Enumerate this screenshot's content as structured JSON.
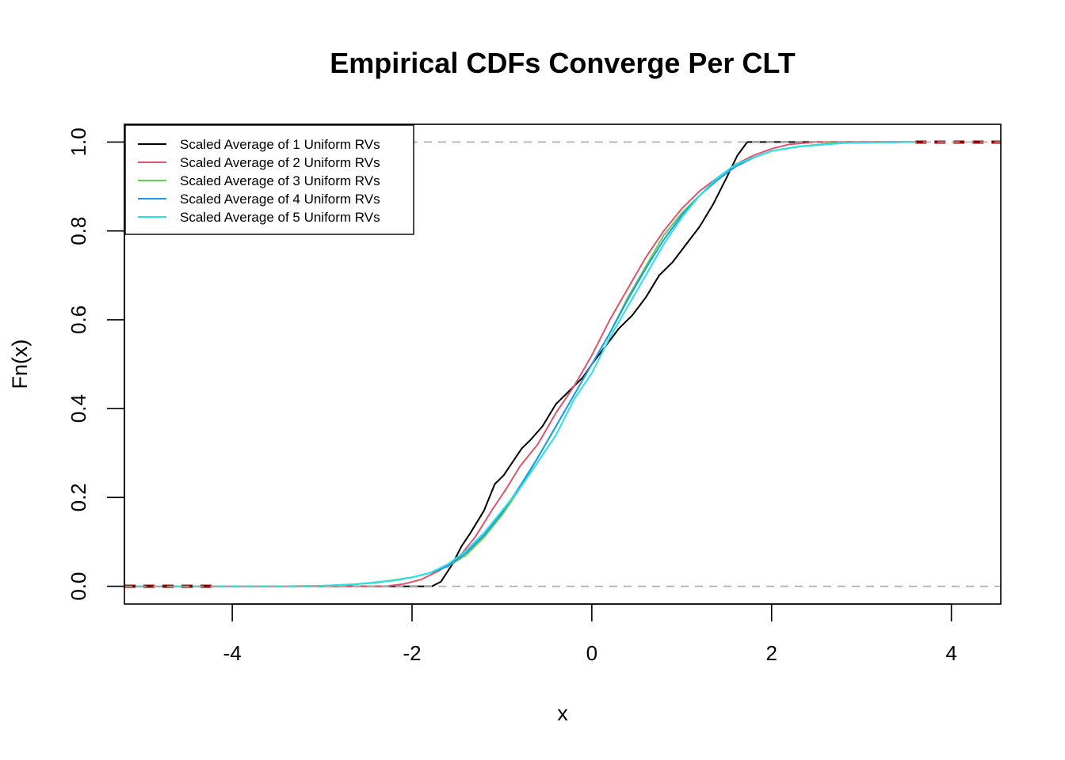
{
  "chart_data": {
    "type": "line",
    "title": "Empirical CDFs Converge Per CLT",
    "xlabel": "x",
    "ylabel": "Fn(x)",
    "xlim": [
      -5.2,
      4.55
    ],
    "ylim": [
      -0.04,
      1.04
    ],
    "x_ticks": [
      -4,
      -2,
      0,
      2,
      4
    ],
    "y_ticks": [
      0.0,
      0.2,
      0.4,
      0.6,
      0.8,
      1.0
    ],
    "x_tick_labels": [
      "-4",
      "-2",
      "0",
      "2",
      "4"
    ],
    "y_tick_labels": [
      "0.0",
      "0.2",
      "0.4",
      "0.6",
      "0.8",
      "1.0"
    ],
    "reference_lines_y": [
      0,
      1
    ],
    "grid": false,
    "legend_position": "top-left",
    "series": [
      {
        "name": "Scaled Average of 1 Uniform RVs",
        "color": "#000000",
        "points": [
          [
            -5.2,
            0
          ],
          [
            -1.78,
            0
          ],
          [
            -1.68,
            0.01
          ],
          [
            -1.55,
            0.05
          ],
          [
            -1.45,
            0.09
          ],
          [
            -1.35,
            0.12
          ],
          [
            -1.2,
            0.17
          ],
          [
            -1.08,
            0.23
          ],
          [
            -0.98,
            0.25
          ],
          [
            -0.88,
            0.28
          ],
          [
            -0.78,
            0.31
          ],
          [
            -0.68,
            0.33
          ],
          [
            -0.55,
            0.36
          ],
          [
            -0.4,
            0.41
          ],
          [
            -0.25,
            0.44
          ],
          [
            -0.1,
            0.47
          ],
          [
            0,
            0.5
          ],
          [
            0.15,
            0.54
          ],
          [
            0.3,
            0.58
          ],
          [
            0.45,
            0.61
          ],
          [
            0.6,
            0.65
          ],
          [
            0.75,
            0.7
          ],
          [
            0.9,
            0.73
          ],
          [
            1.05,
            0.77
          ],
          [
            1.2,
            0.81
          ],
          [
            1.35,
            0.86
          ],
          [
            1.5,
            0.92
          ],
          [
            1.62,
            0.97
          ],
          [
            1.73,
            1.0
          ],
          [
            3.6,
            1.0
          ]
        ]
      },
      {
        "name": "Scaled Average of 2 Uniform RVs",
        "color": "#df536b",
        "points": [
          [
            -5.2,
            0
          ],
          [
            -2.3,
            0
          ],
          [
            -2.1,
            0.005
          ],
          [
            -1.9,
            0.015
          ],
          [
            -1.7,
            0.035
          ],
          [
            -1.5,
            0.06
          ],
          [
            -1.3,
            0.11
          ],
          [
            -1.1,
            0.175
          ],
          [
            -0.95,
            0.22
          ],
          [
            -0.8,
            0.27
          ],
          [
            -0.6,
            0.32
          ],
          [
            -0.4,
            0.39
          ],
          [
            -0.2,
            0.45
          ],
          [
            0,
            0.52
          ],
          [
            0.2,
            0.6
          ],
          [
            0.4,
            0.67
          ],
          [
            0.6,
            0.74
          ],
          [
            0.8,
            0.8
          ],
          [
            1.0,
            0.85
          ],
          [
            1.2,
            0.89
          ],
          [
            1.4,
            0.92
          ],
          [
            1.6,
            0.95
          ],
          [
            1.8,
            0.97
          ],
          [
            2.0,
            0.985
          ],
          [
            2.2,
            0.995
          ],
          [
            2.5,
            1.0
          ],
          [
            3.6,
            1.0
          ]
        ]
      },
      {
        "name": "Scaled Average of 3 Uniform RVs",
        "color": "#61d04f",
        "points": [
          [
            -5.2,
            0
          ],
          [
            -3.2,
            0
          ],
          [
            -2.8,
            0.002
          ],
          [
            -2.4,
            0.008
          ],
          [
            -2.0,
            0.02
          ],
          [
            -1.8,
            0.03
          ],
          [
            -1.6,
            0.045
          ],
          [
            -1.4,
            0.07
          ],
          [
            -1.2,
            0.11
          ],
          [
            -1.0,
            0.16
          ],
          [
            -0.8,
            0.22
          ],
          [
            -0.6,
            0.29
          ],
          [
            -0.4,
            0.36
          ],
          [
            -0.2,
            0.43
          ],
          [
            0,
            0.5
          ],
          [
            0.2,
            0.57
          ],
          [
            0.4,
            0.65
          ],
          [
            0.6,
            0.72
          ],
          [
            0.8,
            0.79
          ],
          [
            1.0,
            0.84
          ],
          [
            1.2,
            0.88
          ],
          [
            1.4,
            0.92
          ],
          [
            1.6,
            0.95
          ],
          [
            1.8,
            0.965
          ],
          [
            2.0,
            0.98
          ],
          [
            2.3,
            0.99
          ],
          [
            2.7,
            0.998
          ],
          [
            3.6,
            1.0
          ]
        ]
      },
      {
        "name": "Scaled Average of 4 Uniform RVs",
        "color": "#2297e6",
        "points": [
          [
            -5.2,
            0
          ],
          [
            -3.5,
            0
          ],
          [
            -3.0,
            0.001
          ],
          [
            -2.6,
            0.005
          ],
          [
            -2.2,
            0.013
          ],
          [
            -2.0,
            0.02
          ],
          [
            -1.8,
            0.03
          ],
          [
            -1.6,
            0.045
          ],
          [
            -1.4,
            0.075
          ],
          [
            -1.2,
            0.115
          ],
          [
            -1.0,
            0.165
          ],
          [
            -0.8,
            0.225
          ],
          [
            -0.6,
            0.29
          ],
          [
            -0.4,
            0.36
          ],
          [
            -0.2,
            0.43
          ],
          [
            0,
            0.5
          ],
          [
            0.2,
            0.57
          ],
          [
            0.4,
            0.645
          ],
          [
            0.6,
            0.715
          ],
          [
            0.8,
            0.78
          ],
          [
            1.0,
            0.835
          ],
          [
            1.2,
            0.88
          ],
          [
            1.4,
            0.915
          ],
          [
            1.6,
            0.945
          ],
          [
            1.8,
            0.965
          ],
          [
            2.0,
            0.98
          ],
          [
            2.3,
            0.99
          ],
          [
            2.8,
            0.998
          ],
          [
            3.6,
            1.0
          ]
        ]
      },
      {
        "name": "Scaled Average of 5 Uniform RVs",
        "color": "#28e2e5",
        "points": [
          [
            -5.2,
            0
          ],
          [
            -3.4,
            0
          ],
          [
            -3.0,
            0.001
          ],
          [
            -2.6,
            0.005
          ],
          [
            -2.2,
            0.013
          ],
          [
            -2.0,
            0.02
          ],
          [
            -1.8,
            0.03
          ],
          [
            -1.6,
            0.05
          ],
          [
            -1.4,
            0.08
          ],
          [
            -1.2,
            0.12
          ],
          [
            -1.0,
            0.17
          ],
          [
            -0.8,
            0.22
          ],
          [
            -0.6,
            0.28
          ],
          [
            -0.4,
            0.34
          ],
          [
            -0.2,
            0.42
          ],
          [
            0,
            0.48
          ],
          [
            0.2,
            0.56
          ],
          [
            0.4,
            0.63
          ],
          [
            0.6,
            0.7
          ],
          [
            0.8,
            0.77
          ],
          [
            1.0,
            0.83
          ],
          [
            1.2,
            0.88
          ],
          [
            1.4,
            0.92
          ],
          [
            1.6,
            0.95
          ],
          [
            1.8,
            0.965
          ],
          [
            2.0,
            0.98
          ],
          [
            2.3,
            0.99
          ],
          [
            2.8,
            0.998
          ],
          [
            3.6,
            1.0
          ]
        ]
      }
    ]
  }
}
